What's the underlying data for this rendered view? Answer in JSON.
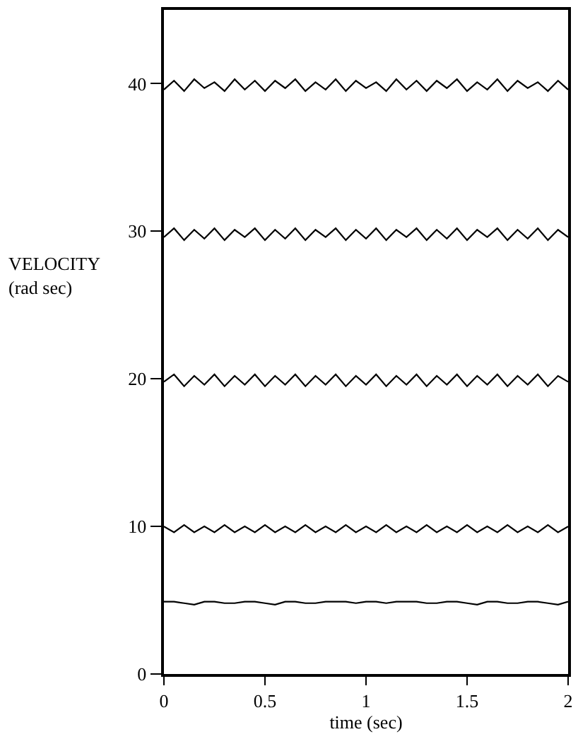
{
  "chart_data": {
    "type": "line",
    "xlabel": "time (sec)",
    "ylabel": "VELOCITY\n(rad sec)",
    "x": [
      0,
      0.05,
      0.1,
      0.15,
      0.2,
      0.25,
      0.3,
      0.35,
      0.4,
      0.45,
      0.5,
      0.55,
      0.6,
      0.65,
      0.7,
      0.75,
      0.8,
      0.85,
      0.9,
      0.95,
      1,
      1.05,
      1.1,
      1.15,
      1.2,
      1.25,
      1.3,
      1.35,
      1.4,
      1.45,
      1.5,
      1.55,
      1.6,
      1.65,
      1.7,
      1.75,
      1.8,
      1.85,
      1.9,
      1.95,
      2
    ],
    "series": [
      {
        "color": "#000000",
        "values": [
          39.6,
          40.2,
          39.5,
          40.3,
          39.7,
          40.1,
          39.5,
          40.3,
          39.6,
          40.2,
          39.5,
          40.2,
          39.7,
          40.3,
          39.5,
          40.1,
          39.6,
          40.3,
          39.5,
          40.2,
          39.7,
          40.1,
          39.5,
          40.3,
          39.6,
          40.2,
          39.5,
          40.2,
          39.7,
          40.3,
          39.5,
          40.1,
          39.6,
          40.3,
          39.5,
          40.2,
          39.7,
          40.1,
          39.5,
          40.2,
          39.6
        ]
      },
      {
        "color": "#000000",
        "values": [
          29.6,
          30.2,
          29.4,
          30.1,
          29.5,
          30.2,
          29.4,
          30.1,
          29.6,
          30.2,
          29.4,
          30.1,
          29.5,
          30.2,
          29.4,
          30.1,
          29.6,
          30.2,
          29.4,
          30.1,
          29.5,
          30.2,
          29.4,
          30.1,
          29.6,
          30.2,
          29.4,
          30.1,
          29.5,
          30.2,
          29.4,
          30.1,
          29.6,
          30.2,
          29.4,
          30.1,
          29.5,
          30.2,
          29.4,
          30.1,
          29.6
        ]
      },
      {
        "color": "#000000",
        "values": [
          19.8,
          20.3,
          19.5,
          20.2,
          19.6,
          20.3,
          19.5,
          20.2,
          19.6,
          20.3,
          19.5,
          20.2,
          19.6,
          20.3,
          19.5,
          20.2,
          19.6,
          20.3,
          19.5,
          20.2,
          19.6,
          20.3,
          19.5,
          20.2,
          19.6,
          20.3,
          19.5,
          20.2,
          19.6,
          20.3,
          19.5,
          20.2,
          19.6,
          20.3,
          19.5,
          20.2,
          19.6,
          20.3,
          19.5,
          20.2,
          19.8
        ]
      },
      {
        "color": "#000000",
        "values": [
          10.0,
          9.6,
          10.1,
          9.6,
          10.0,
          9.6,
          10.1,
          9.6,
          10.0,
          9.6,
          10.1,
          9.6,
          10.0,
          9.6,
          10.1,
          9.6,
          10.0,
          9.6,
          10.1,
          9.6,
          10.0,
          9.6,
          10.1,
          9.6,
          10.0,
          9.6,
          10.1,
          9.6,
          10.0,
          9.6,
          10.1,
          9.6,
          10.0,
          9.6,
          10.1,
          9.6,
          10.0,
          9.6,
          10.1,
          9.6,
          10.0
        ]
      },
      {
        "color": "#000000",
        "values": [
          4.9,
          4.9,
          4.8,
          4.7,
          4.9,
          4.9,
          4.8,
          4.8,
          4.9,
          4.9,
          4.8,
          4.7,
          4.9,
          4.9,
          4.8,
          4.8,
          4.9,
          4.9,
          4.9,
          4.8,
          4.9,
          4.9,
          4.8,
          4.9,
          4.9,
          4.9,
          4.8,
          4.8,
          4.9,
          4.9,
          4.8,
          4.7,
          4.9,
          4.9,
          4.8,
          4.8,
          4.9,
          4.9,
          4.8,
          4.7,
          4.9
        ]
      }
    ],
    "xlim": [
      0,
      2
    ],
    "xticks": [
      0,
      0.5,
      1,
      1.5,
      2
    ],
    "ylim": [
      0,
      45
    ],
    "yticks": [
      0,
      10,
      20,
      30,
      40
    ],
    "marker": "none",
    "line_style": "solid"
  }
}
